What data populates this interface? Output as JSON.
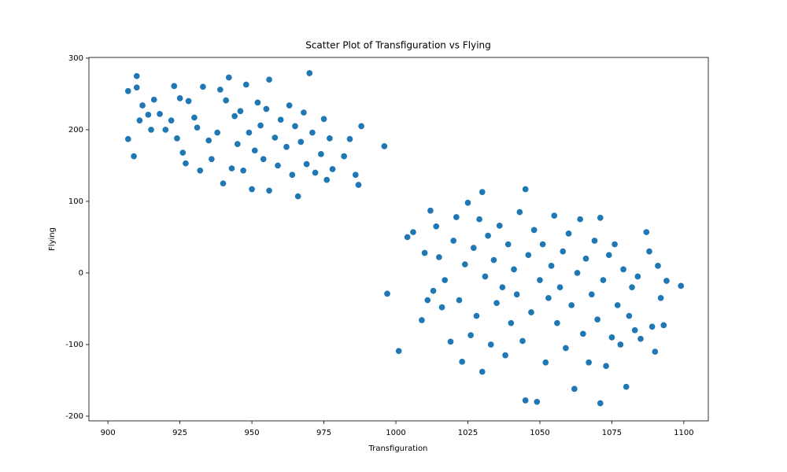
{
  "chart_data": {
    "type": "scatter",
    "title": "Scatter Plot of Transfiguration vs Flying",
    "x_label": "Transfiguration",
    "y_label": "Flying",
    "color": "#1f77b4",
    "grid": false,
    "xlim": [
      893.4,
      1108.5
    ],
    "ylim": [
      -206.6,
      301
    ],
    "xticks": [
      900,
      925,
      950,
      975,
      1000,
      1025,
      1050,
      1075,
      1100
    ],
    "yticks": [
      -200,
      -100,
      0,
      100,
      200,
      300
    ],
    "x": [
      907,
      907,
      909,
      910,
      910,
      911,
      912,
      914,
      915,
      916,
      918,
      920,
      922,
      923,
      924,
      925,
      926,
      927,
      928,
      930,
      931,
      932,
      933,
      935,
      936,
      938,
      939,
      940,
      941,
      942,
      943,
      944,
      945,
      946,
      947,
      948,
      949,
      950,
      951,
      952,
      953,
      954,
      955,
      956,
      956,
      958,
      959,
      960,
      962,
      963,
      964,
      965,
      966,
      967,
      968,
      969,
      970,
      971,
      972,
      974,
      975,
      976,
      977,
      978,
      982,
      984,
      986,
      987,
      988,
      996,
      997,
      1001,
      1004,
      1006,
      1009,
      1010,
      1011,
      1012,
      1013,
      1014,
      1015,
      1016,
      1017,
      1019,
      1020,
      1021,
      1022,
      1023,
      1024,
      1025,
      1026,
      1027,
      1028,
      1029,
      1030,
      1030,
      1031,
      1032,
      1033,
      1034,
      1035,
      1036,
      1037,
      1038,
      1039,
      1040,
      1041,
      1042,
      1043,
      1044,
      1045,
      1045,
      1046,
      1047,
      1048,
      1049,
      1050,
      1051,
      1052,
      1053,
      1054,
      1055,
      1056,
      1057,
      1058,
      1059,
      1060,
      1061,
      1062,
      1063,
      1064,
      1065,
      1066,
      1067,
      1068,
      1069,
      1070,
      1071,
      1071,
      1072,
      1073,
      1074,
      1075,
      1076,
      1077,
      1078,
      1079,
      1080,
      1081,
      1082,
      1083,
      1084,
      1085,
      1087,
      1088,
      1089,
      1090,
      1091,
      1092,
      1093,
      1094,
      1099
    ],
    "values": [
      254,
      187,
      163,
      275,
      259,
      213,
      234,
      221,
      200,
      242,
      222,
      200,
      213,
      261,
      188,
      244,
      168,
      153,
      240,
      217,
      203,
      143,
      260,
      185,
      159,
      196,
      256,
      125,
      241,
      273,
      146,
      219,
      180,
      226,
      143,
      263,
      196,
      117,
      171,
      238,
      206,
      159,
      229,
      115,
      270,
      189,
      150,
      214,
      176,
      234,
      137,
      205,
      107,
      183,
      224,
      152,
      279,
      196,
      140,
      166,
      215,
      130,
      188,
      145,
      163,
      187,
      137,
      123,
      205,
      177,
      -29,
      -109,
      50,
      57,
      -66,
      28,
      -38,
      87,
      -25,
      65,
      22,
      -48,
      -10,
      -96,
      45,
      78,
      -38,
      -124,
      12,
      98,
      -87,
      35,
      -60,
      75,
      113,
      -138,
      -5,
      52,
      -100,
      18,
      -42,
      66,
      -20,
      -115,
      40,
      -70,
      5,
      -30,
      85,
      -95,
      117,
      -178,
      25,
      -55,
      60,
      -180,
      -10,
      40,
      -125,
      -35,
      10,
      80,
      -70,
      -20,
      30,
      -105,
      55,
      -45,
      -162,
      0,
      75,
      -85,
      20,
      -125,
      -30,
      45,
      -65,
      -182,
      77,
      -10,
      -130,
      25,
      -90,
      40,
      -45,
      -100,
      5,
      -159,
      -60,
      -20,
      -80,
      -5,
      -92,
      57,
      30,
      -75,
      -110,
      10,
      -35,
      -73,
      -11,
      -18
    ]
  }
}
